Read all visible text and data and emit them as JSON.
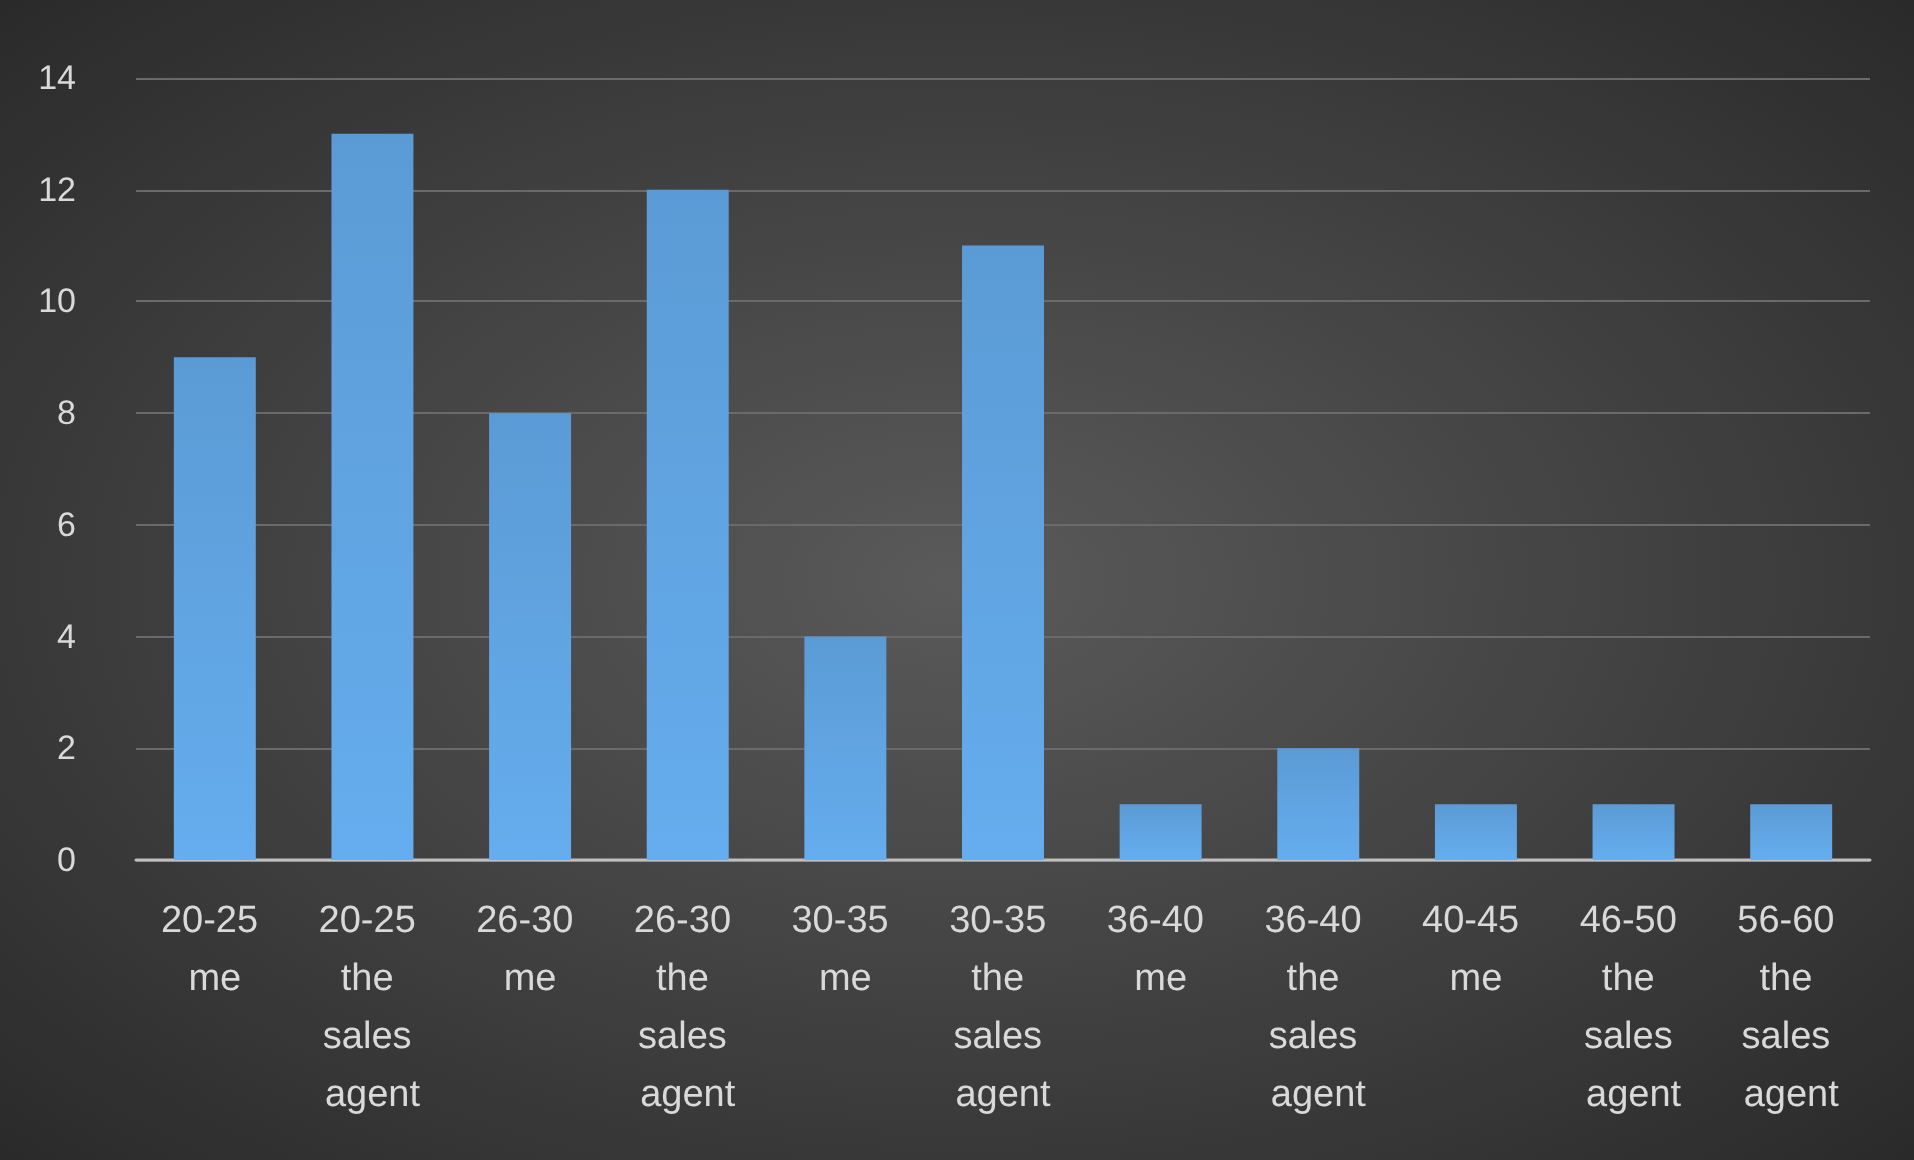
{
  "chart_data": {
    "type": "bar",
    "categories": [
      "20-25 me",
      "20-25 the sales agent",
      "26-30 me",
      "26-30 the sales agent",
      "30-35 me",
      "30-35 the sales agent",
      "36-40 me",
      "36-40 the sales agent",
      "40-45 me",
      "46-50 the sales agent",
      "56-60 the sales agent"
    ],
    "values": [
      9,
      13,
      8,
      12,
      4,
      11,
      1,
      2,
      1,
      1,
      1
    ],
    "color": "#5b9bd5",
    "ylim": [
      0,
      14
    ],
    "yticks": [
      0,
      2,
      4,
      6,
      8,
      10,
      12,
      14
    ],
    "grid": "y"
  }
}
